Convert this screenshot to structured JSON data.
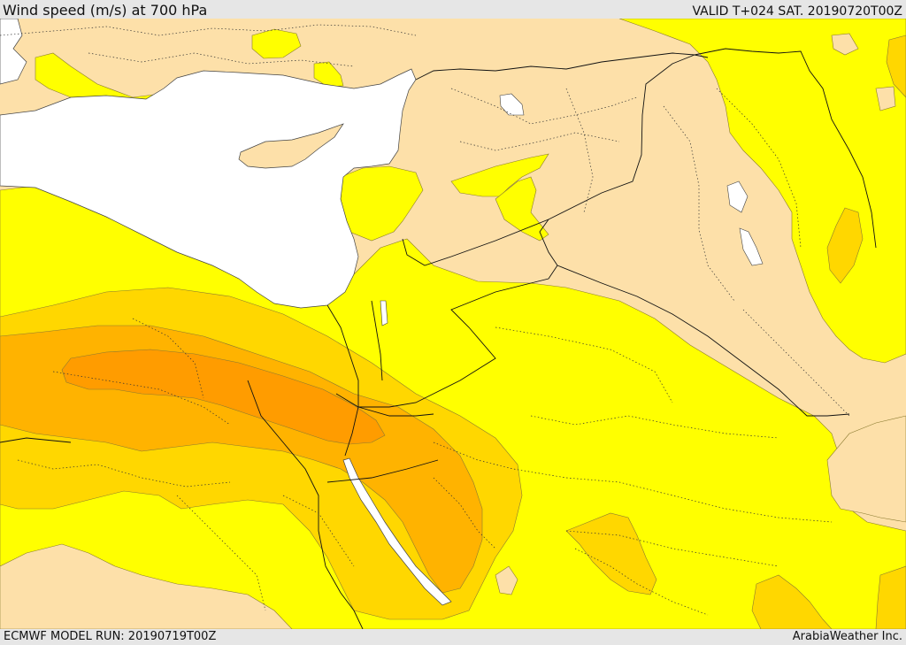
{
  "header": {
    "title": "Wind speed (m/s) at 700 hPa",
    "valid": "VALID T+024 SAT. 20190720T00Z"
  },
  "footer": {
    "model_run": "ECMWF MODEL RUN: 20190719T00Z",
    "credit": "ArabiaWeather Inc."
  },
  "colors": {
    "band_lowest": "#fde0a9",
    "band_low": "#ffff00",
    "band_mid": "#ffd700",
    "band_high": "#ffb300",
    "band_highest": "#ff9c00",
    "sea": "#ffffff",
    "borders": "#000000"
  }
}
